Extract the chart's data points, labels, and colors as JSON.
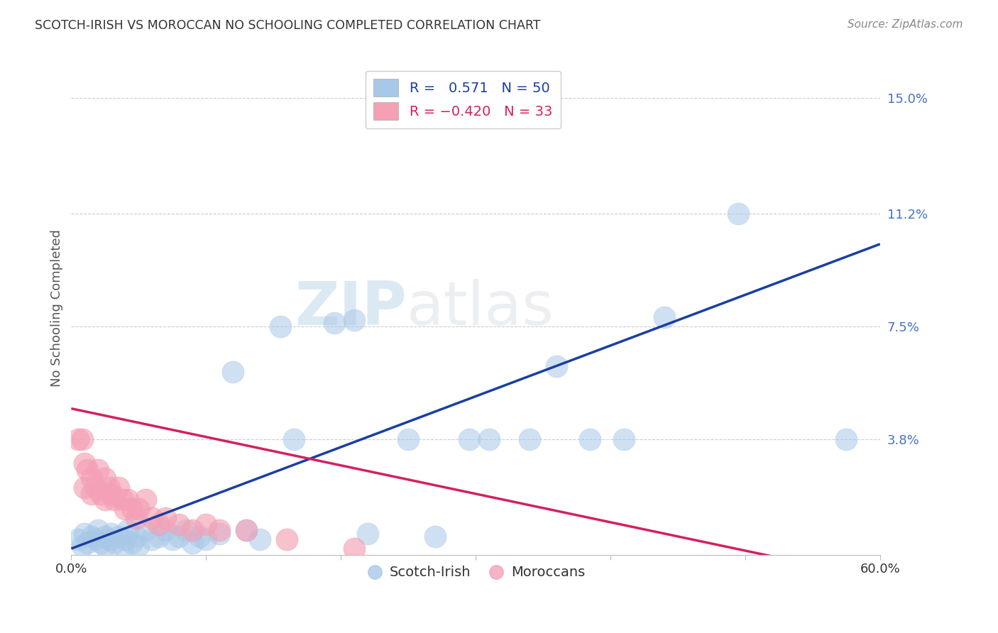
{
  "title": "SCOTCH-IRISH VS MOROCCAN NO SCHOOLING COMPLETED CORRELATION CHART",
  "source": "Source: ZipAtlas.com",
  "ylabel": "No Schooling Completed",
  "xlim": [
    0.0,
    0.6
  ],
  "ylim": [
    0.0,
    0.162
  ],
  "xticks": [
    0.0,
    0.1,
    0.2,
    0.3,
    0.4,
    0.5,
    0.6
  ],
  "xticklabels": [
    "0.0%",
    "",
    "",
    "",
    "",
    "",
    "60.0%"
  ],
  "ytick_positions": [
    0.038,
    0.075,
    0.112,
    0.15
  ],
  "ytick_labels": [
    "3.8%",
    "7.5%",
    "11.2%",
    "15.0%"
  ],
  "blue_color": "#a8c8e8",
  "pink_color": "#f4a0b5",
  "trend_blue": "#1a3fa0",
  "trend_pink": "#d42060",
  "r_blue": 0.571,
  "n_blue": 50,
  "r_pink": -0.42,
  "n_pink": 33,
  "background_color": "#ffffff",
  "grid_color": "#c8c8c8",
  "title_color": "#333333",
  "axis_label_color": "#555555",
  "right_tick_color": "#4472c4",
  "watermark_color": "#b8d4e8",
  "blue_trend_start_y": 0.002,
  "blue_trend_end_y": 0.102,
  "pink_trend_start_y": 0.048,
  "pink_trend_end_y": -0.008,
  "scotch_irish_x": [
    0.005,
    0.008,
    0.01,
    0.012,
    0.015,
    0.018,
    0.02,
    0.022,
    0.025,
    0.025,
    0.028,
    0.03,
    0.032,
    0.035,
    0.038,
    0.04,
    0.042,
    0.045,
    0.048,
    0.05,
    0.055,
    0.06,
    0.065,
    0.07,
    0.075,
    0.08,
    0.085,
    0.09,
    0.095,
    0.1,
    0.11,
    0.12,
    0.13,
    0.14,
    0.155,
    0.165,
    0.195,
    0.21,
    0.22,
    0.25,
    0.27,
    0.295,
    0.31,
    0.34,
    0.36,
    0.385,
    0.41,
    0.44,
    0.495,
    0.575
  ],
  "scotch_irish_y": [
    0.005,
    0.003,
    0.007,
    0.004,
    0.006,
    0.005,
    0.008,
    0.004,
    0.006,
    0.003,
    0.005,
    0.007,
    0.004,
    0.006,
    0.003,
    0.005,
    0.008,
    0.004,
    0.006,
    0.003,
    0.008,
    0.005,
    0.006,
    0.008,
    0.005,
    0.006,
    0.008,
    0.004,
    0.006,
    0.005,
    0.007,
    0.06,
    0.008,
    0.005,
    0.075,
    0.038,
    0.076,
    0.077,
    0.007,
    0.038,
    0.006,
    0.038,
    0.038,
    0.038,
    0.062,
    0.038,
    0.038,
    0.078,
    0.112,
    0.038
  ],
  "moroccan_x": [
    0.005,
    0.008,
    0.01,
    0.01,
    0.012,
    0.015,
    0.015,
    0.018,
    0.02,
    0.022,
    0.025,
    0.025,
    0.028,
    0.03,
    0.032,
    0.035,
    0.038,
    0.04,
    0.042,
    0.045,
    0.048,
    0.05,
    0.055,
    0.06,
    0.065,
    0.07,
    0.08,
    0.09,
    0.1,
    0.11,
    0.13,
    0.16,
    0.21
  ],
  "moroccan_y": [
    0.038,
    0.038,
    0.03,
    0.022,
    0.028,
    0.025,
    0.02,
    0.022,
    0.028,
    0.02,
    0.025,
    0.018,
    0.022,
    0.02,
    0.018,
    0.022,
    0.018,
    0.015,
    0.018,
    0.015,
    0.012,
    0.015,
    0.018,
    0.012,
    0.01,
    0.012,
    0.01,
    0.008,
    0.01,
    0.008,
    0.008,
    0.005,
    0.002
  ]
}
